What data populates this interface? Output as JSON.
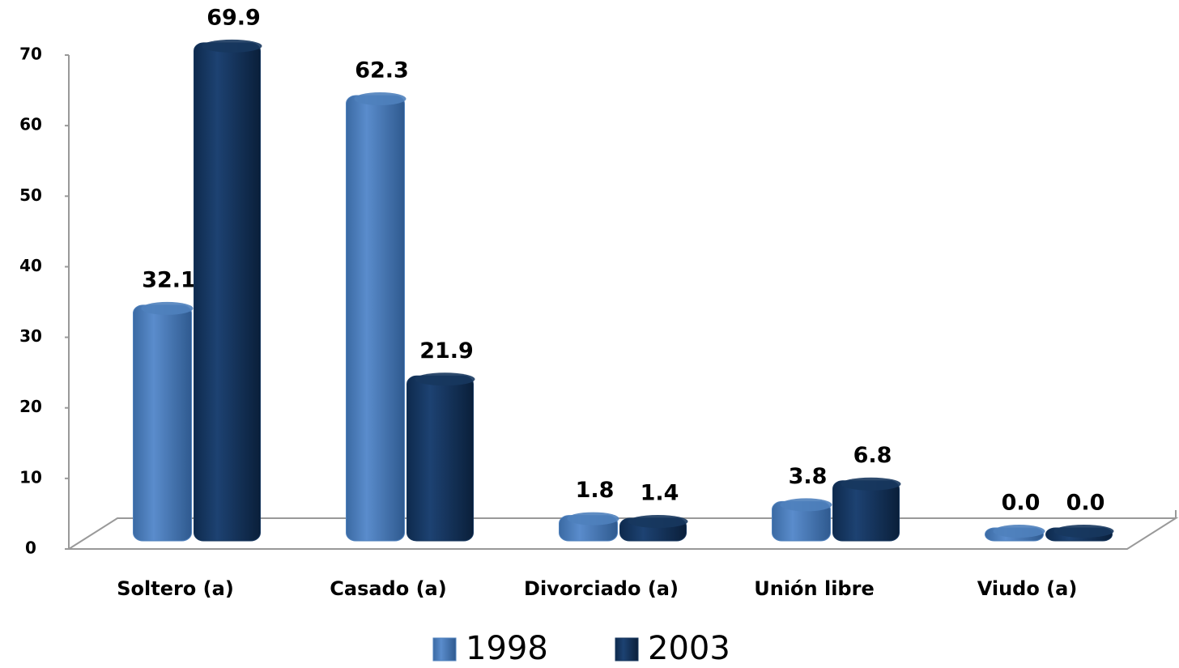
{
  "chart_data": {
    "type": "bar",
    "categories": [
      "Soltero (a)",
      "Casado (a)",
      "Divorciado (a)",
      "Unión libre",
      "Viudo (a)"
    ],
    "series": [
      {
        "name": "1998",
        "color": "#4f81bd",
        "values": [
          32.1,
          62.3,
          1.8,
          3.8,
          0
        ],
        "value_labels": [
          "32.1",
          "62.3",
          "1.8",
          "3.8",
          "0.0"
        ]
      },
      {
        "name": "2003",
        "color": "#17375e",
        "values": [
          69.9,
          21.9,
          1.4,
          6.8,
          0
        ],
        "value_labels": [
          "69.9",
          "21.9",
          "1.4",
          "6.8",
          "0.0"
        ]
      }
    ],
    "ylim": [
      0,
      70
    ],
    "yticks": [
      0,
      10,
      20,
      30,
      40,
      50,
      60,
      70
    ],
    "legend": "bottom"
  }
}
